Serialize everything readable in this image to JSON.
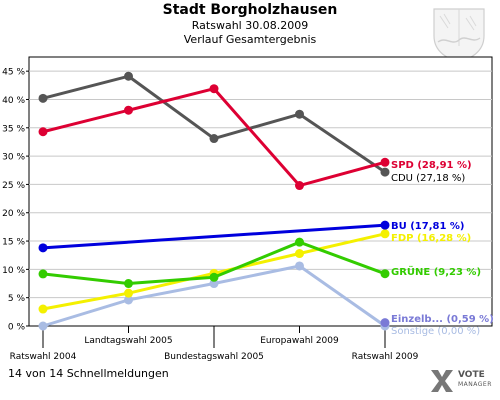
{
  "header": {
    "title": "Stadt Borgholzhausen",
    "subtitle1": "Ratswahl 30.08.2009",
    "subtitle2": "Verlauf Gesamtergebnis"
  },
  "footer": {
    "status": "14 von 14 Schnellmeldungen"
  },
  "logo": {
    "line1": "VOTE",
    "line2": "MANAGER"
  },
  "chart_data": {
    "type": "line",
    "x": [
      "Ratswahl 2004",
      "Landtagswahl 2005",
      "Bundestagswahl 2005",
      "Europawahl 2009",
      "Ratswahl 2009"
    ],
    "ylim": [
      0,
      47.5
    ],
    "yticks": [
      0,
      5,
      10,
      15,
      20,
      25,
      30,
      35,
      40,
      45
    ],
    "ytick_labels": [
      "0 %",
      "5 %",
      "10 %",
      "15 %",
      "20 %",
      "25 %",
      "30 %",
      "35 %",
      "40 %",
      "45 %"
    ],
    "grid": true,
    "series": [
      {
        "name": "Sonstige",
        "label": "Sonstige (0,00 %)",
        "color": "#a9bce3",
        "values": [
          0.0,
          4.6,
          7.5,
          10.6,
          0.0
        ]
      },
      {
        "name": "Einzelb...",
        "label": "Einzelb... (0,59 %)",
        "color": "#7a7ad6",
        "values": [
          null,
          null,
          null,
          null,
          0.59
        ]
      },
      {
        "name": "FDP",
        "label": "FDP (16,28 %)",
        "color": "#f4f000",
        "values": [
          3.0,
          5.8,
          9.3,
          12.8,
          16.28
        ]
      },
      {
        "name": "GRÜNE",
        "label": "GRÜNE (9,23 %)",
        "color": "#33cc00",
        "values": [
          9.2,
          7.5,
          8.6,
          14.8,
          9.23
        ]
      },
      {
        "name": "BU",
        "label": "BU (17,81 %)",
        "color": "#0000dd",
        "values": [
          13.8,
          null,
          null,
          null,
          17.81
        ]
      },
      {
        "name": "CDU",
        "label": "CDU (27,18 %)",
        "color": "#555555",
        "values": [
          40.2,
          44.1,
          33.1,
          37.4,
          27.18
        ]
      },
      {
        "name": "SPD",
        "label": "SPD (28,91 %)",
        "color": "#dd0033",
        "values": [
          34.3,
          38.1,
          41.9,
          24.8,
          28.91
        ]
      }
    ]
  }
}
